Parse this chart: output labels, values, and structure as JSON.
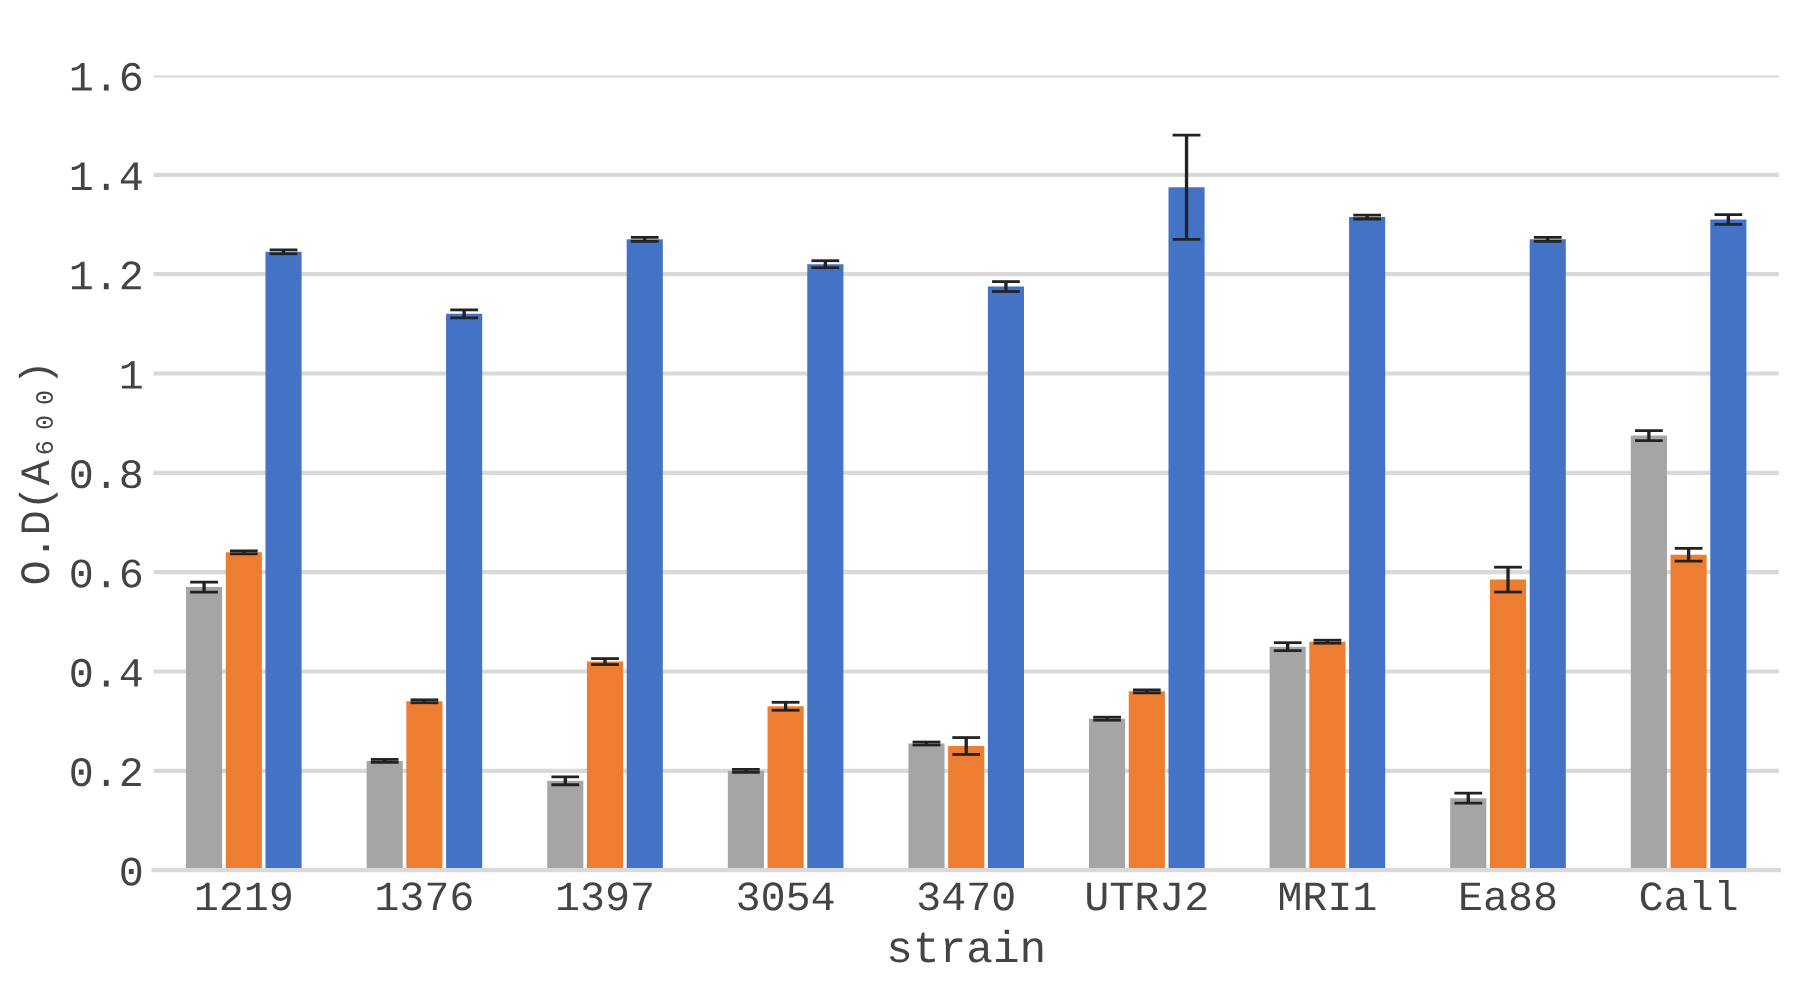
{
  "chart_data": {
    "type": "bar",
    "xlabel": "strain",
    "ylabel": "O.D(A₆₀₀)",
    "categories": [
      "1219",
      "1376",
      "1397",
      "3054",
      "3470",
      "UTRJ2",
      "MRI1",
      "Ea88",
      "Call"
    ],
    "series": [
      {
        "color": "#a5a5a5",
        "values": [
          0.57,
          0.22,
          0.18,
          0.2,
          0.255,
          0.305,
          0.45,
          0.145,
          0.875
        ],
        "errors": [
          0.01,
          0.003,
          0.008,
          0.003,
          0.003,
          0.003,
          0.008,
          0.01,
          0.01
        ]
      },
      {
        "color": "#ed7d31",
        "values": [
          0.64,
          0.34,
          0.42,
          0.33,
          0.25,
          0.36,
          0.46,
          0.585,
          0.635
        ],
        "errors": [
          0.003,
          0.003,
          0.006,
          0.008,
          0.017,
          0.003,
          0.003,
          0.025,
          0.013
        ]
      },
      {
        "color": "#4472c4",
        "values": [
          1.245,
          1.12,
          1.27,
          1.22,
          1.175,
          1.375,
          1.315,
          1.27,
          1.31
        ],
        "errors": [
          0.004,
          0.008,
          0.004,
          0.007,
          0.01,
          0.105,
          0.004,
          0.004,
          0.01
        ]
      }
    ],
    "ylim": [
      0,
      1.6
    ],
    "yticks": [
      0,
      0.2,
      0.4,
      0.6,
      0.8,
      1,
      1.2,
      1.4,
      1.6
    ],
    "grid": "y",
    "legend": false
  }
}
